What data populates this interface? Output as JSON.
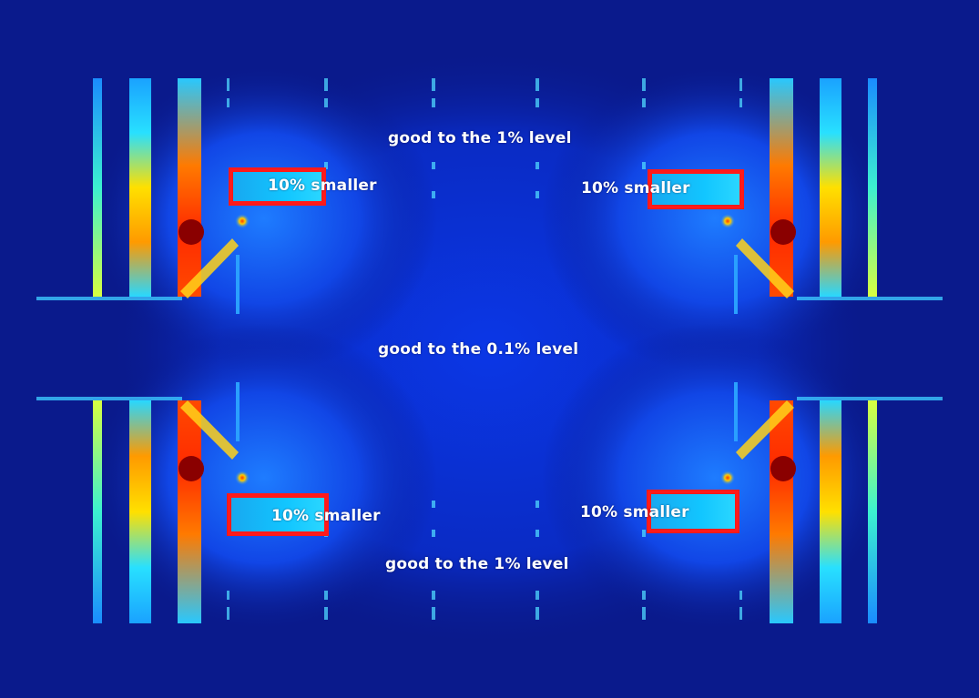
{
  "labels": {
    "top_center": "good to the 1% level",
    "middle_center": "good to the 0.1% level",
    "bottom_center": "good to the 1% level",
    "top_left_box": "10% smaller",
    "top_right_box": "10% smaller",
    "bottom_left_box": "10% smaller",
    "bottom_right_box": "10% smaller"
  },
  "colors": {
    "background": "#0a1a8c",
    "field_core": "#0b2fd8",
    "box_outline": "#ff1a1a",
    "label_text": "#ffffff"
  }
}
